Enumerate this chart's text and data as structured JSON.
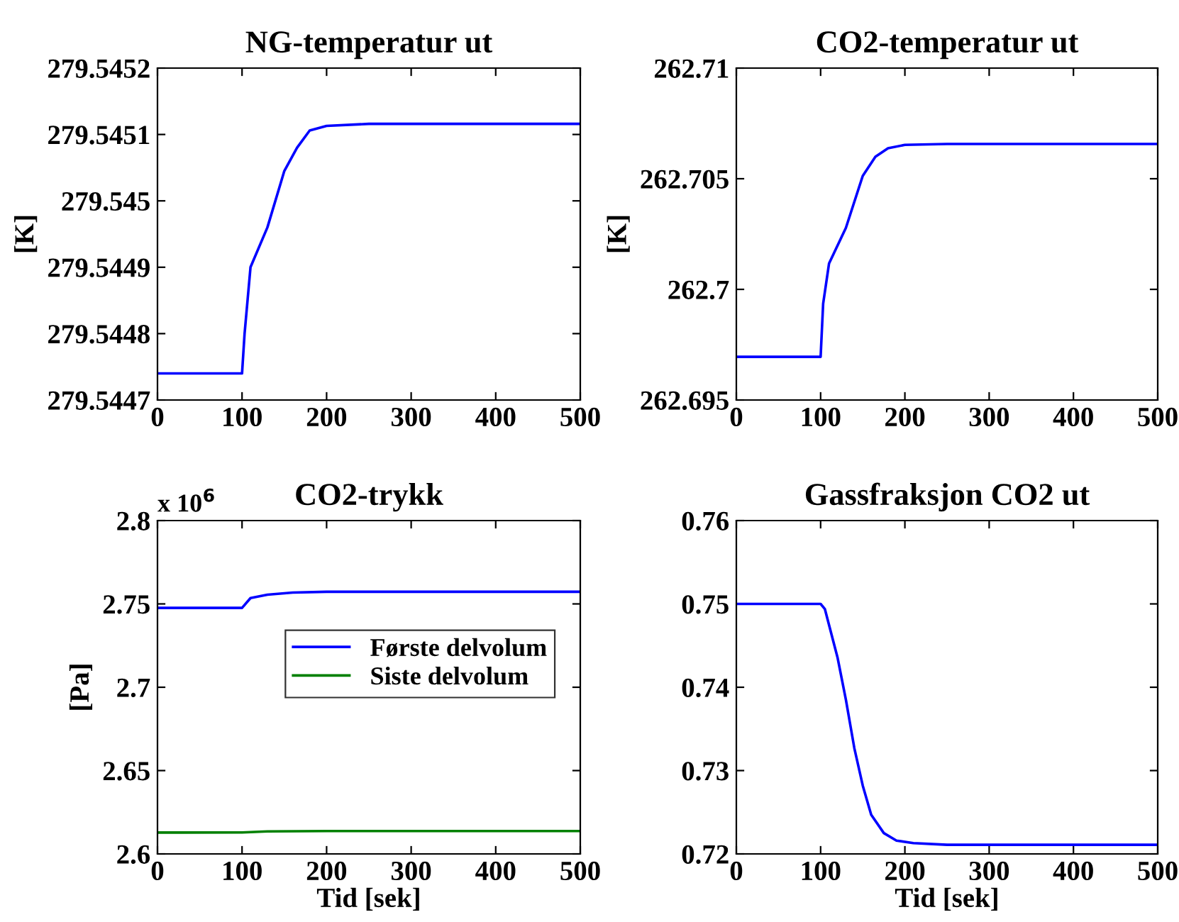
{
  "chart_data": [
    {
      "type": "line",
      "title": "NG-temperatur ut",
      "ylabel": "[K]",
      "xlim": [
        0,
        500
      ],
      "xticks": [
        0,
        100,
        200,
        300,
        400,
        500
      ],
      "ylim": [
        279.5447,
        279.5452
      ],
      "yticks": [
        279.5447,
        279.5448,
        279.5449,
        279.545,
        279.5451,
        279.5452
      ],
      "grid": false,
      "legend": false,
      "series": [
        {
          "color": "#0000ff",
          "x": [
            0,
            100,
            103,
            110,
            130,
            150,
            165,
            180,
            200,
            250,
            500
          ],
          "values": [
            279.54474,
            279.54474,
            279.5448,
            279.5449,
            279.54496,
            279.545045,
            279.54508,
            279.545106,
            279.545113,
            279.545116,
            279.545116
          ]
        }
      ]
    },
    {
      "type": "line",
      "title": "CO2-temperatur ut",
      "ylabel": "[K]",
      "xlim": [
        0,
        500
      ],
      "xticks": [
        0,
        100,
        200,
        300,
        400,
        500
      ],
      "ylim": [
        262.695,
        262.71
      ],
      "yticks": [
        262.695,
        262.7,
        262.705,
        262.71
      ],
      "grid": false,
      "legend": false,
      "series": [
        {
          "color": "#0000ff",
          "x": [
            0,
            100,
            103,
            110,
            130,
            150,
            165,
            180,
            200,
            250,
            500
          ],
          "values": [
            262.69695,
            262.69695,
            262.69935,
            262.70117,
            262.70278,
            262.70513,
            262.70599,
            262.70638,
            262.70653,
            262.70657,
            262.70657
          ]
        }
      ]
    },
    {
      "type": "line",
      "title": "CO2-trykk",
      "ylabel": "[Pa]",
      "xlabel": "Tid [sek]",
      "annotations": [
        "x 10$^{6}$"
      ],
      "xlim": [
        0,
        500
      ],
      "xticks": [
        0,
        100,
        200,
        300,
        400,
        500
      ],
      "ylim": [
        2.6,
        2.8
      ],
      "yticks": [
        2.6,
        2.65,
        2.7,
        2.75,
        2.8
      ],
      "grid": false,
      "legend": "right",
      "series": [
        {
          "name": "Første delvolum",
          "color": "#0000ff",
          "x": [
            0,
            100,
            110,
            130,
            160,
            200,
            500
          ],
          "values": [
            2.7476,
            2.7476,
            2.7535,
            2.7555,
            2.7568,
            2.7573,
            2.7573
          ]
        },
        {
          "name": "Siste delvolum",
          "color": "#008000",
          "x": [
            0,
            100,
            130,
            200,
            500
          ],
          "values": [
            2.6128,
            2.6129,
            2.6135,
            2.6137,
            2.6137
          ]
        }
      ]
    },
    {
      "type": "line",
      "title": "Gassfraksjon CO2 ut",
      "xlabel": "Tid [sek]",
      "xlim": [
        0,
        500
      ],
      "xticks": [
        0,
        100,
        200,
        300,
        400,
        500
      ],
      "ylim": [
        0.72,
        0.76
      ],
      "yticks": [
        0.72,
        0.73,
        0.74,
        0.75,
        0.76
      ],
      "grid": false,
      "legend": false,
      "series": [
        {
          "color": "#0000ff",
          "x": [
            0,
            100,
            105,
            120,
            130,
            140,
            150,
            160,
            175,
            190,
            210,
            250,
            500
          ],
          "values": [
            0.75,
            0.75,
            0.7494,
            0.7436,
            0.7385,
            0.7327,
            0.7282,
            0.7247,
            0.7225,
            0.7216,
            0.7213,
            0.7211,
            0.7211
          ]
        }
      ]
    }
  ]
}
